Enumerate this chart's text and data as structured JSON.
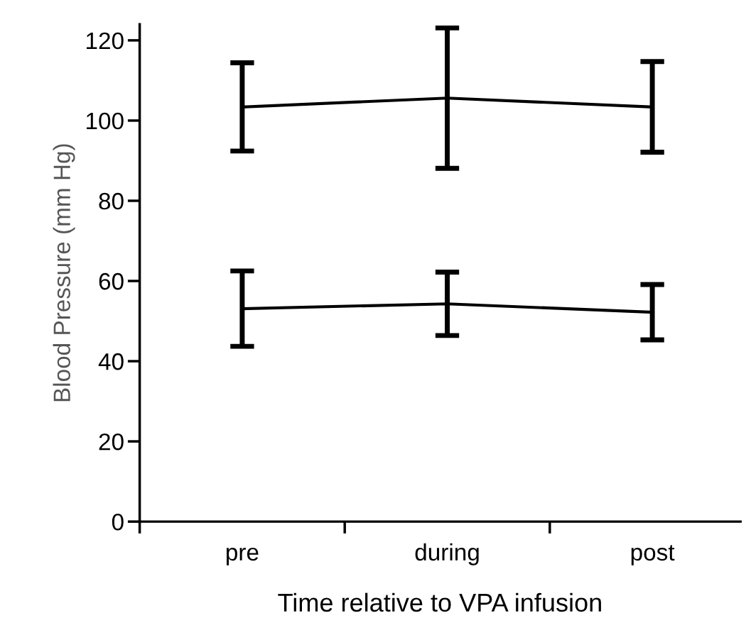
{
  "chart_data": {
    "type": "line",
    "xlabel": "Time relative to VPA infusion",
    "ylabel": "Blood Pressure (mm Hg)",
    "categories": [
      "pre",
      "during",
      "post"
    ],
    "series": [
      {
        "color": "#000000",
        "values": [
          103.4,
          105.6,
          103.4
        ],
        "errors": [
          11,
          17.5,
          11.3
        ]
      },
      {
        "color": "#000000",
        "values": [
          53.1,
          54.3,
          52.2
        ],
        "errors": [
          9.4,
          7.9,
          6.9
        ]
      }
    ],
    "ylim": [
      0,
      124
    ],
    "yticks": [
      0,
      20,
      40,
      60,
      80,
      100,
      120
    ],
    "grid": false,
    "marker": "none",
    "line_style": "solid"
  }
}
